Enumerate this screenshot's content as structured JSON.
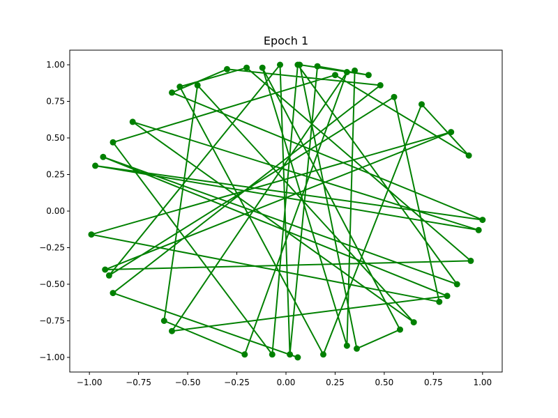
{
  "chart_data": {
    "type": "line",
    "title": "Epoch 1",
    "xlabel": "",
    "ylabel": "",
    "xlim": [
      -1.1,
      1.1
    ],
    "ylim": [
      -1.1,
      1.1
    ],
    "xticks": [
      -1.0,
      -0.75,
      -0.5,
      -0.25,
      0.0,
      0.25,
      0.5,
      0.75,
      1.0
    ],
    "yticks": [
      -1.0,
      -0.75,
      -0.5,
      -0.25,
      0.0,
      0.25,
      0.5,
      0.75,
      1.0
    ],
    "xtick_labels": [
      "−1.00",
      "−0.75",
      "−0.50",
      "−0.25",
      "0.00",
      "0.25",
      "0.50",
      "0.75",
      "1.00"
    ],
    "ytick_labels": [
      "−1.00",
      "−0.75",
      "−0.50",
      "−0.25",
      "0.00",
      "0.25",
      "0.50",
      "0.75",
      "1.00"
    ],
    "grid": false,
    "color": "#008000",
    "marker": "circle",
    "series": [
      {
        "x": [
          0.06,
          -0.88,
          0.48,
          -0.3,
          -0.58,
          1.0,
          -0.97,
          0.98,
          -0.78,
          0.65,
          -0.45,
          -0.62,
          -0.21,
          0.31,
          -0.58,
          0.82,
          -0.93,
          0.87,
          0.06,
          -0.07,
          -0.88,
          0.25,
          0.93,
          0.69,
          0.19,
          -0.54,
          -0.2,
          0.94,
          -0.92,
          0.84,
          -0.99,
          0.78,
          0.55,
          -0.9,
          -0.03,
          0.02,
          0.16,
          0.42,
          0.07,
          0.36,
          0.58,
          -0.12,
          0.31,
          0.35
        ],
        "y": [
          -1.0,
          -0.56,
          0.86,
          0.97,
          0.81,
          -0.06,
          0.31,
          -0.13,
          0.61,
          -0.76,
          0.86,
          -0.75,
          -0.98,
          0.95,
          -0.82,
          -0.58,
          0.37,
          -0.5,
          1.0,
          -0.98,
          0.47,
          0.93,
          0.38,
          0.73,
          -0.98,
          0.85,
          0.98,
          -0.34,
          -0.4,
          0.54,
          -0.16,
          -0.62,
          0.78,
          -0.44,
          1.0,
          -0.98,
          0.99,
          0.93,
          1.0,
          -0.94,
          -0.81,
          0.98,
          -0.92,
          0.96
        ]
      }
    ]
  }
}
